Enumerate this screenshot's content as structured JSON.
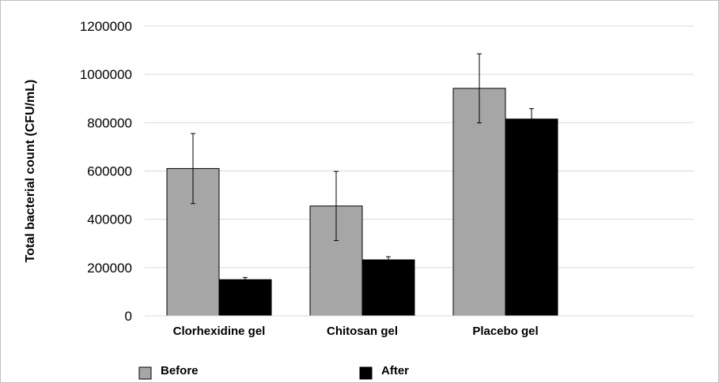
{
  "chart_data": {
    "type": "bar",
    "categories": [
      "Clorhexidine gel",
      "Chitosan  gel",
      "Placebo gel"
    ],
    "series": [
      {
        "name": "Before",
        "color": "#a6a6a6",
        "values": [
          610000,
          455000,
          942000
        ],
        "errors": [
          145000,
          143000,
          143000
        ]
      },
      {
        "name": "After",
        "color": "#000000",
        "values": [
          150000,
          232000,
          815000
        ],
        "errors": [
          9000,
          13000,
          43000
        ]
      }
    ],
    "title": "",
    "xlabel": "",
    "ylabel": "Total bacterial count  (CFU/mL)",
    "ylim": [
      0,
      1200000
    ],
    "yticks": [
      "0",
      "200000",
      "400000",
      "600000",
      "800000",
      "1000000",
      "1200000"
    ],
    "grid": true,
    "legend_position": "bottom"
  }
}
